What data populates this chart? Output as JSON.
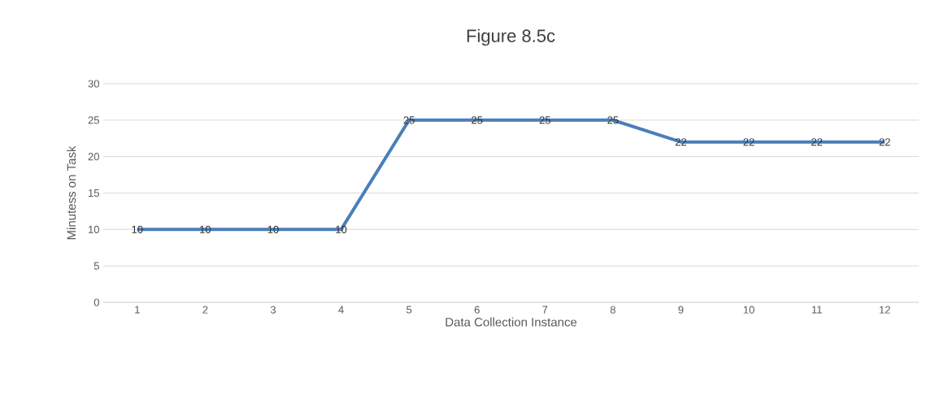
{
  "chart_data": {
    "type": "line",
    "title": "Figure 8.5c",
    "xlabel": "Data Collection Instance",
    "ylabel": "Minutess on Task",
    "categories": [
      "1",
      "2",
      "3",
      "4",
      "5",
      "6",
      "7",
      "8",
      "9",
      "10",
      "11",
      "12"
    ],
    "series": [
      {
        "color": "#4a7ebb",
        "values": [
          10,
          10,
          10,
          10,
          25,
          25,
          25,
          25,
          22,
          22,
          22,
          22
        ]
      }
    ],
    "ylim": [
      0,
      30
    ],
    "yticks": [
      0,
      5,
      10,
      15,
      20,
      25,
      30
    ],
    "grid": "y",
    "data_labels": true,
    "marker": "none",
    "line_style": "solid"
  }
}
